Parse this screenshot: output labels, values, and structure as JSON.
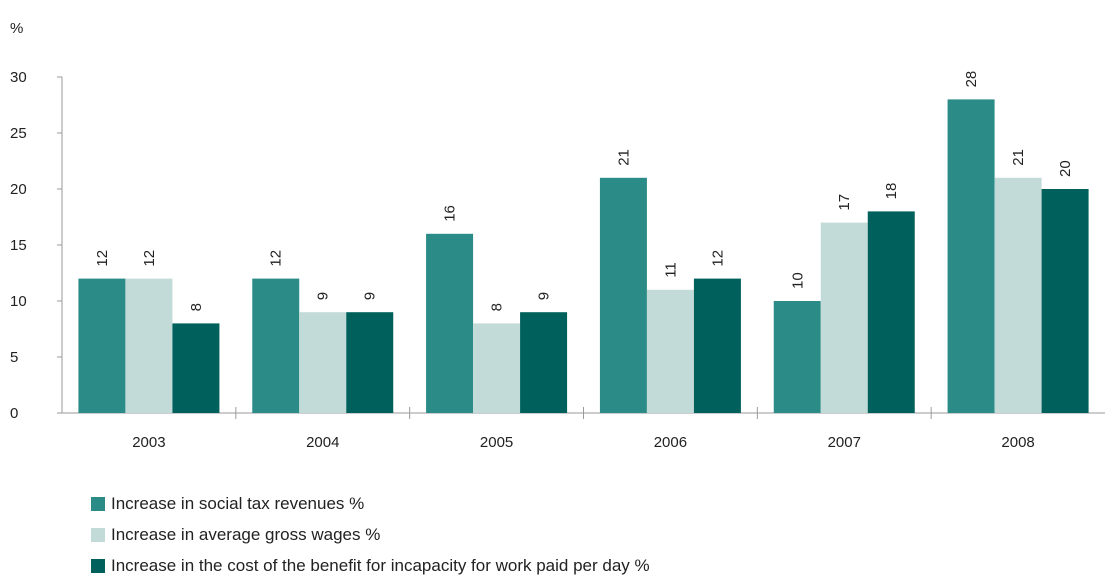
{
  "chart_data": {
    "type": "bar",
    "ylabel": "%",
    "ylim": [
      0,
      30
    ],
    "yticks": [
      0,
      5,
      10,
      15,
      20,
      25,
      30
    ],
    "categories": [
      "2003",
      "2004",
      "2005",
      "2006",
      "2007",
      "2008"
    ],
    "series": [
      {
        "name": "Increase in social tax revenues %",
        "color": "#2a8b87",
        "values": [
          12,
          12,
          16,
          21,
          10,
          28
        ]
      },
      {
        "name": "Increase in average gross wages %",
        "color": "#c3dbd8",
        "values": [
          12,
          9,
          8,
          11,
          17,
          21
        ]
      },
      {
        "name": "Increase in the cost of the benefit for incapacity for work paid per day %",
        "color": "#00615c",
        "values": [
          8,
          9,
          9,
          12,
          18,
          20
        ]
      }
    ],
    "grid": false,
    "legend_position": "bottom-left"
  }
}
